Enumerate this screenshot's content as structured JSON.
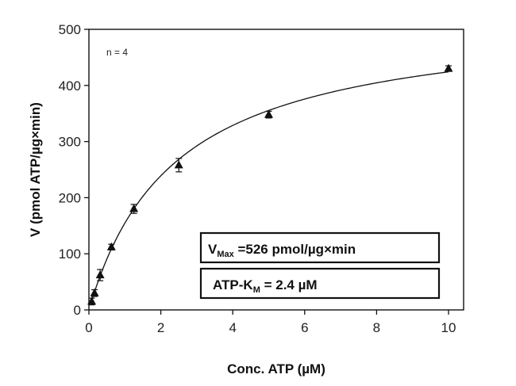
{
  "chart_data": {
    "type": "scatter",
    "title": "",
    "xlabel": "Conc. ATP (µM)",
    "ylabel": "V (pmol ATP/µg×min)",
    "xlim": [
      0,
      10.5
    ],
    "ylim": [
      0,
      500
    ],
    "xticks": [
      0,
      2,
      4,
      6,
      8,
      10
    ],
    "yticks": [
      0,
      100,
      200,
      300,
      400,
      500
    ],
    "grid": false,
    "series": [
      {
        "marker": "triangle",
        "x": [
          0.078,
          0.156,
          0.3125,
          0.625,
          1.25,
          2.5,
          5,
          10
        ],
        "y": [
          15,
          30,
          62,
          112,
          180,
          258,
          348,
          430
        ],
        "err": [
          6,
          6,
          10,
          5,
          8,
          12,
          6,
          5
        ]
      }
    ],
    "fit": {
      "model": "Michaelis-Menten",
      "vmax": 526,
      "km": 2.4
    },
    "annotations": {
      "n_label": "n = 4",
      "vmax_main": "V",
      "vmax_sub": "Max",
      "vmax_rest": " =526 pmol/µg×min",
      "km_main": "ATP-K",
      "km_sub": "M",
      "km_rest": " = 2.4  µM"
    },
    "colors": {
      "marker": "#111111",
      "line": "#111111",
      "axis": "#111111"
    }
  }
}
